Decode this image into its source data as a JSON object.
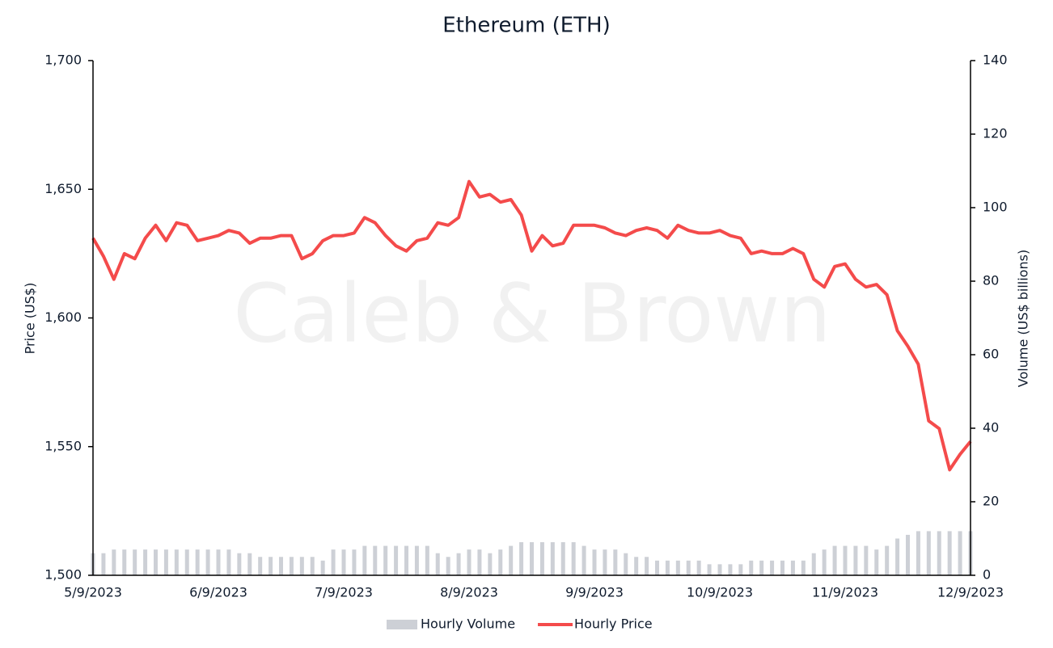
{
  "chart_data": {
    "type": "bar_line",
    "title": "Ethereum (ETH)",
    "watermark": "Caleb & Brown",
    "y_label": "Price (US$)",
    "y2_label": "Volume (US$ billions)",
    "ylim": [
      1500,
      1700
    ],
    "yticks": [
      {
        "value": 1500,
        "label": "1,500"
      },
      {
        "value": 1550,
        "label": "1,550"
      },
      {
        "value": 1600,
        "label": "1,600"
      },
      {
        "value": 1650,
        "label": "1,650"
      },
      {
        "value": 1700,
        "label": "1,700"
      }
    ],
    "y2lim": [
      0,
      140
    ],
    "y2ticks": [
      0,
      20,
      40,
      60,
      80,
      100,
      120,
      140
    ],
    "legend": "bottom",
    "categories": [
      "5/9/2023",
      null,
      null,
      null,
      null,
      null,
      null,
      null,
      null,
      null,
      null,
      null,
      "6/9/2023",
      null,
      null,
      null,
      null,
      null,
      null,
      null,
      null,
      null,
      null,
      null,
      "7/9/2023",
      null,
      null,
      null,
      null,
      null,
      null,
      null,
      null,
      null,
      null,
      null,
      "8/9/2023",
      null,
      null,
      null,
      null,
      null,
      null,
      null,
      null,
      null,
      null,
      null,
      "9/9/2023",
      null,
      null,
      null,
      null,
      null,
      null,
      null,
      null,
      null,
      null,
      null,
      "10/9/2023",
      null,
      null,
      null,
      null,
      null,
      null,
      null,
      null,
      null,
      null,
      null,
      "11/9/2023",
      null,
      null,
      null,
      null,
      null,
      null,
      null,
      null,
      null,
      null,
      null,
      "12/9/2023"
    ],
    "series": [
      {
        "name": "Hourly Volume",
        "type": "bar",
        "axis": "y2",
        "color": "#cdd0d6",
        "values": [
          6,
          6,
          7,
          7,
          7,
          7,
          7,
          7,
          7,
          7,
          7,
          7,
          7,
          7,
          6,
          6,
          5,
          5,
          5,
          5,
          5,
          5,
          4,
          7,
          7,
          7,
          8,
          8,
          8,
          8,
          8,
          8,
          8,
          6,
          5,
          6,
          7,
          7,
          6,
          7,
          8,
          9,
          9,
          9,
          9,
          9,
          9,
          8,
          7,
          7,
          7,
          6,
          5,
          5,
          4,
          4,
          4,
          4,
          4,
          3,
          3,
          3,
          3,
          4,
          4,
          4,
          4,
          4,
          4,
          6,
          7,
          8,
          8,
          8,
          8,
          7,
          8,
          10,
          11,
          12,
          12,
          12,
          12,
          12,
          12
        ]
      },
      {
        "name": "Hourly Price",
        "type": "line",
        "axis": "y",
        "color": "#f44b4b",
        "values": [
          1631,
          1624,
          1615,
          1625,
          1623,
          1631,
          1636,
          1630,
          1637,
          1636,
          1630,
          1631,
          1632,
          1634,
          1633,
          1629,
          1631,
          1631,
          1632,
          1632,
          1623,
          1625,
          1630,
          1632,
          1632,
          1633,
          1639,
          1637,
          1632,
          1628,
          1626,
          1630,
          1631,
          1637,
          1636,
          1639,
          1653,
          1647,
          1648,
          1645,
          1646,
          1640,
          1626,
          1632,
          1628,
          1629,
          1636,
          1636,
          1636,
          1635,
          1633,
          1632,
          1634,
          1635,
          1634,
          1631,
          1636,
          1634,
          1633,
          1633,
          1634,
          1632,
          1631,
          1625,
          1626,
          1625,
          1625,
          1627,
          1625,
          1615,
          1612,
          1620,
          1621,
          1615,
          1612,
          1613,
          1609,
          1595,
          1589,
          1582,
          1560,
          1557,
          1541,
          1547,
          1552
        ]
      }
    ]
  }
}
